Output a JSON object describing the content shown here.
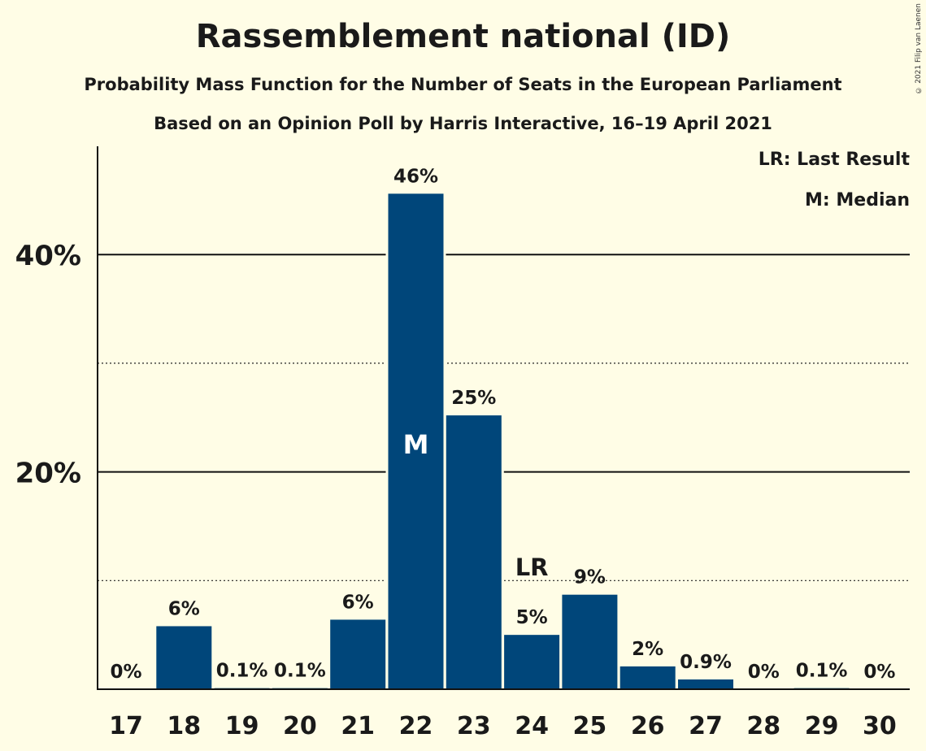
{
  "chart_data": {
    "type": "bar",
    "title": "Rassemblement national (ID)",
    "subtitle": "Probability Mass Function for the Number of Seats in the European Parliament",
    "subtitle2": "Based on an Opinion Poll by Harris Interactive, 16–19 April 2021",
    "categories": [
      "17",
      "18",
      "19",
      "20",
      "21",
      "22",
      "23",
      "24",
      "25",
      "26",
      "27",
      "28",
      "29",
      "30"
    ],
    "values": [
      0,
      5.8,
      0.1,
      0.1,
      6.4,
      45.6,
      25.2,
      5.0,
      8.7,
      2.1,
      0.9,
      0,
      0.1,
      0
    ],
    "value_labels": [
      "0%",
      "6%",
      "0.1%",
      "0.1%",
      "6%",
      "46%",
      "25%",
      "5%",
      "9%",
      "2%",
      "0.9%",
      "0%",
      "0.1%",
      "0%"
    ],
    "ylim": [
      0,
      50
    ],
    "yticks": [
      {
        "value": 20,
        "label": "20%"
      },
      {
        "value": 40,
        "label": "40%"
      }
    ],
    "minor_gridlines": [
      10,
      30
    ],
    "median_category": "22",
    "last_result_category": "24",
    "bar_color": "#00467A",
    "background": "#FFFDE6",
    "legend": {
      "last_result": "LR: Last Result",
      "median": "M: Median",
      "position": "top-right"
    },
    "median_marker": "M",
    "last_result_marker": "LR"
  },
  "copyright": "© 2021 Filip van Laenen"
}
